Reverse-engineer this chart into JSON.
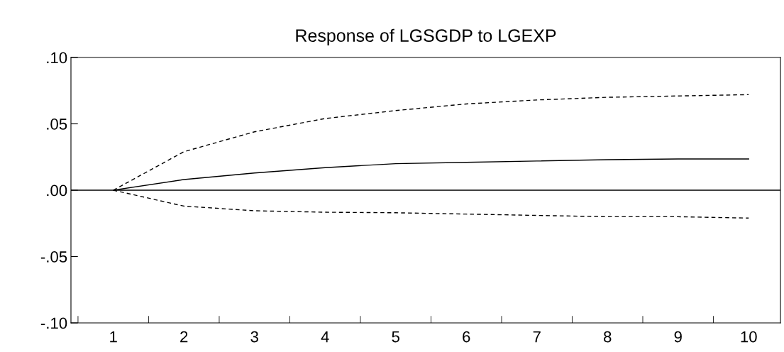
{
  "chart_data": {
    "type": "line",
    "title": "Response of LGSGDP to LGEXP",
    "categories": [
      "1",
      "2",
      "3",
      "4",
      "5",
      "6",
      "7",
      "8",
      "9",
      "10"
    ],
    "series": [
      {
        "color": "#000000",
        "line_style": "solid",
        "values": [
          0.0,
          0.008,
          0.013,
          0.017,
          0.02,
          0.021,
          0.022,
          0.023,
          0.0235,
          0.0235
        ]
      },
      {
        "color": "#000000",
        "line_style": "dashed",
        "values": [
          0.0,
          0.029,
          0.044,
          0.054,
          0.06,
          0.065,
          0.068,
          0.07,
          0.071,
          0.072
        ]
      },
      {
        "color": "#000000",
        "line_style": "dashed",
        "values": [
          0.0,
          -0.012,
          -0.0155,
          -0.0166,
          -0.017,
          -0.018,
          -0.019,
          -0.02,
          -0.02,
          -0.021
        ]
      }
    ],
    "ylim": [
      -0.1,
      0.1
    ],
    "yticks": [
      {
        "value": -0.1,
        "label": "-.10"
      },
      {
        "value": -0.05,
        "label": "-.05"
      },
      {
        "value": 0.0,
        "label": ".00"
      },
      {
        "value": 0.05,
        "label": ".05"
      },
      {
        "value": 0.1,
        "label": ".10"
      }
    ],
    "ref_lines": [
      {
        "axis": "y",
        "value": 0.0,
        "color": "#000000",
        "line_style": "solid"
      }
    ],
    "grid": false,
    "legend": false
  }
}
